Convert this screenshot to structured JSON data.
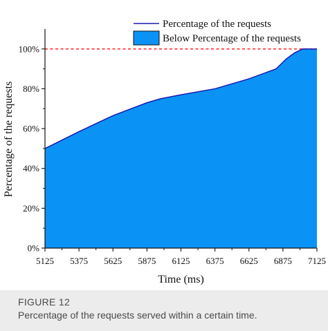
{
  "chart_data": {
    "type": "area",
    "title": "",
    "xlabel": "Time (ms)",
    "ylabel": "Percentage of the requests",
    "xlim": [
      5125,
      7125
    ],
    "ylim": [
      0,
      110
    ],
    "x_ticks": [
      5125,
      5375,
      5625,
      5875,
      6125,
      6375,
      6625,
      6875,
      7125
    ],
    "y_ticks": [
      0,
      20,
      40,
      60,
      80,
      100
    ],
    "y_tick_labels": [
      "0%",
      "20%",
      "40%",
      "60%",
      "80%",
      "100%"
    ],
    "reference_line": {
      "y": 100,
      "style": "dashed",
      "color": "#ff3333"
    },
    "series": [
      {
        "name": "Percentage of the requests",
        "x": [
          5125,
          5375,
          5625,
          5875,
          5975,
          6125,
          6375,
          6625,
          6825,
          6900,
          6960,
          7020,
          7125
        ],
        "y": [
          50,
          58.5,
          66.5,
          73,
          75,
          77,
          80,
          85,
          90,
          95,
          98,
          100,
          100
        ]
      }
    ],
    "legend": {
      "position": "top-right",
      "entries": [
        "Percentage of the requests",
        "Below Percentage of the requests"
      ]
    },
    "colors": {
      "line": "#1a1ab0",
      "fill": "#0a93f5",
      "reference": "#ff3333"
    }
  },
  "caption": {
    "label": "FIGURE 12",
    "text": "Percentage of the requests served within a certain time."
  }
}
